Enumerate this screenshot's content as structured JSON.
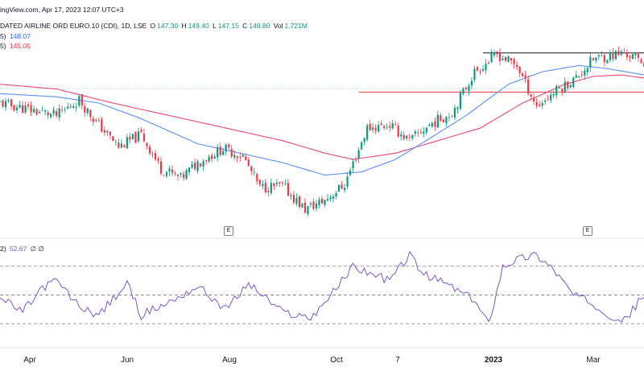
{
  "header": {
    "line1": "ingView.com, Apr 17, 2023 12:07 UTC+3",
    "symbol": "DATED AIRLINE ORD EURO.10 (CDI), 1D, LSE",
    "o_label": "O",
    "o_value": "147.30",
    "h_label": "H",
    "h_value": "149.40",
    "l_label": "L",
    "l_value": "147.15",
    "c_label": "C",
    "c_value": "148.80",
    "vol_label": "Vol",
    "vol_value": "1.721M",
    "ma1_prefix": "5)",
    "ma1_value": "148.07",
    "ma2_prefix": "5)",
    "ma2_value": "145.05",
    "rsi_prefix": "2)",
    "rsi_value": "52.67",
    "rsi_extra": "∅ ∅"
  },
  "earnings_badges": [
    "E",
    "E"
  ],
  "colors": {
    "up": "#089981",
    "down": "#f23645",
    "ma_fast": "#5b8ff9",
    "ma_slow": "#f0466e",
    "rsi": "#7e57c2",
    "resistance": "#131722",
    "support": "#f23645"
  },
  "chart_data": {
    "type": "candlestick",
    "x_ticks": [
      {
        "label": "Apr",
        "bold": false
      },
      {
        "label": "Jun",
        "bold": false
      },
      {
        "label": "Aug",
        "bold": false
      },
      {
        "label": "Oct",
        "bold": false
      },
      {
        "label": "7",
        "bold": false
      },
      {
        "label": "2023",
        "bold": true
      },
      {
        "label": "Mar",
        "bold": false
      }
    ],
    "price_anchors": [
      [
        0,
        124
      ],
      [
        10,
        120
      ],
      [
        20,
        116
      ],
      [
        28,
        126
      ],
      [
        34,
        112
      ],
      [
        42,
        96
      ],
      [
        50,
        104
      ],
      [
        57,
        82
      ],
      [
        64,
        76
      ],
      [
        70,
        86
      ],
      [
        79,
        95
      ],
      [
        86,
        90
      ],
      [
        92,
        70
      ],
      [
        100,
        71
      ],
      [
        108,
        56
      ],
      [
        115,
        62
      ],
      [
        122,
        72
      ],
      [
        130,
        108
      ],
      [
        138,
        110
      ],
      [
        145,
        100
      ],
      [
        152,
        110
      ],
      [
        160,
        118
      ],
      [
        168,
        144
      ],
      [
        176,
        155
      ],
      [
        183,
        148
      ],
      [
        190,
        122
      ],
      [
        197,
        132
      ],
      [
        204,
        140
      ],
      [
        210,
        152
      ],
      [
        215,
        154
      ],
      [
        221,
        156
      ],
      [
        228,
        150
      ]
    ],
    "ma_fast_anchors": [
      [
        0,
        130
      ],
      [
        20,
        128
      ],
      [
        35,
        124
      ],
      [
        50,
        114
      ],
      [
        70,
        98
      ],
      [
        85,
        92
      ],
      [
        100,
        86
      ],
      [
        115,
        78
      ],
      [
        128,
        80
      ],
      [
        140,
        88
      ],
      [
        150,
        99
      ],
      [
        165,
        116
      ],
      [
        180,
        136
      ],
      [
        192,
        144
      ],
      [
        205,
        148
      ],
      [
        215,
        146
      ],
      [
        228,
        142
      ]
    ],
    "ma_slow_anchors": [
      [
        0,
        136
      ],
      [
        20,
        133
      ],
      [
        40,
        124
      ],
      [
        60,
        116
      ],
      [
        80,
        108
      ],
      [
        100,
        100
      ],
      [
        115,
        92
      ],
      [
        125,
        88
      ],
      [
        140,
        92
      ],
      [
        155,
        100
      ],
      [
        170,
        108
      ],
      [
        185,
        124
      ],
      [
        200,
        136
      ],
      [
        210,
        141
      ],
      [
        220,
        142
      ],
      [
        228,
        140
      ]
    ],
    "rsi_anchors": [
      [
        0,
        48
      ],
      [
        8,
        38
      ],
      [
        15,
        55
      ],
      [
        20,
        60
      ],
      [
        28,
        42
      ],
      [
        35,
        36
      ],
      [
        45,
        58
      ],
      [
        50,
        36
      ],
      [
        60,
        45
      ],
      [
        70,
        56
      ],
      [
        80,
        40
      ],
      [
        88,
        58
      ],
      [
        100,
        38
      ],
      [
        110,
        34
      ],
      [
        118,
        52
      ],
      [
        125,
        70
      ],
      [
        130,
        66
      ],
      [
        138,
        60
      ],
      [
        145,
        78
      ],
      [
        150,
        64
      ],
      [
        158,
        58
      ],
      [
        168,
        46
      ],
      [
        173,
        30
      ],
      [
        178,
        70
      ],
      [
        183,
        75
      ],
      [
        190,
        78
      ],
      [
        196,
        68
      ],
      [
        203,
        50
      ],
      [
        210,
        44
      ],
      [
        216,
        36
      ],
      [
        221,
        32
      ],
      [
        228,
        50
      ]
    ],
    "rsi_levels": [
      70,
      50,
      30
    ],
    "resistance_level": 156,
    "support_level": 131
  }
}
